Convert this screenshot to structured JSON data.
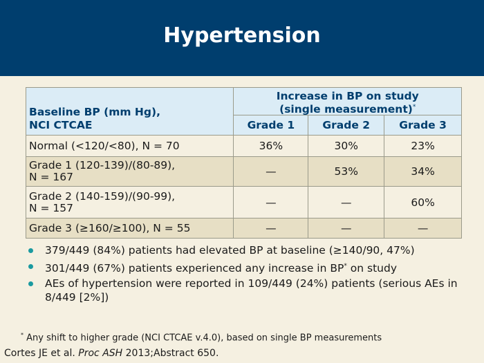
{
  "title": "Hypertension",
  "table": {
    "row_header_line1": "Baseline BP (mm Hg),",
    "row_header_line2": "NCI CTCAE",
    "span_header_line1": "Increase in BP on study",
    "span_header_line2": "(single measurement)",
    "span_header_marker": "*",
    "grades": [
      "Grade 1",
      "Grade 2",
      "Grade 3"
    ],
    "rows": [
      {
        "label_line1": "Normal (<120/<80), N = 70",
        "label_line2": "",
        "values": [
          "36%",
          "30%",
          "23%"
        ]
      },
      {
        "label_line1": "Grade 1 (120-139)/(80-89),",
        "label_line2": "N = 167",
        "values": [
          "—",
          "53%",
          "34%"
        ]
      },
      {
        "label_line1": "Grade 2 (140-159)/(90-99),",
        "label_line2": "N = 157",
        "values": [
          "—",
          "—",
          "60%"
        ]
      },
      {
        "label_line1": "Grade 3 (≥160/≥100), N = 55",
        "label_line2": "",
        "values": [
          "—",
          "—",
          "—"
        ]
      }
    ]
  },
  "bullets": [
    {
      "text": "379/449 (84%) patients had elevated BP at baseline (≥140/90, 47%)",
      "marker": "",
      "after": ""
    },
    {
      "text": "301/449 (67%) patients experienced any increase in BP",
      "marker": "*",
      "after": " on study"
    },
    {
      "text": "AEs of hypertension were reported in 109/449 (24%) patients (serious AEs in 8/449 [2%])",
      "marker": "",
      "after": ""
    }
  ],
  "footnote": {
    "marker": "*",
    "text": " Any shift to higher grade (NCI CTCAE v.4.0), based on single BP measurements"
  },
  "citation": {
    "authors": "Cortes JE et al. ",
    "journal": "Proc ASH",
    "rest": " 2013;Abstract 650."
  },
  "colors": {
    "header_bg": "#003e6e",
    "slide_bg": "#f5f0e1",
    "table_header_bg": "#dbecf6",
    "table_row_dark": "#e7dfc5",
    "bullet_dot": "#1a9aa0"
  }
}
